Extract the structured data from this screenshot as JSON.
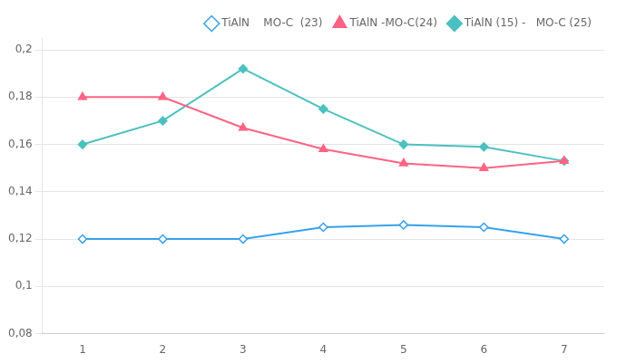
{
  "chart_data": {
    "type": "line",
    "x": [
      1,
      2,
      3,
      4,
      5,
      6,
      7
    ],
    "series": [
      {
        "name": "TiAlN    MO-C  (23)",
        "values": [
          0.12,
          0.12,
          0.12,
          0.125,
          0.126,
          0.125,
          0.12
        ],
        "marker": "diamond_open",
        "line_style": "solid"
      },
      {
        "name": "TiAlN -MO-C(24)",
        "values": [
          0.18,
          0.18,
          0.167,
          0.158,
          0.152,
          0.15,
          0.153
        ],
        "marker": "triangle",
        "line_style": "solid"
      },
      {
        "name": "TiAlN (15) -   MO-C (25)",
        "values": [
          0.16,
          0.17,
          0.192,
          0.175,
          0.16,
          0.159,
          0.153
        ],
        "marker": "diamond",
        "line_style": "solid"
      }
    ],
    "xlim": [
      0.5,
      7.5
    ],
    "xticks": [
      1,
      2,
      3,
      4,
      5,
      6,
      7
    ],
    "ylim": [
      0.08,
      0.205
    ],
    "yticks": [
      {
        "value": 0.08,
        "label": "0,08"
      },
      {
        "value": 0.1,
        "label": "0,1"
      },
      {
        "value": 0.12,
        "label": "0,12"
      },
      {
        "value": 0.14,
        "label": "0,14"
      },
      {
        "value": 0.16,
        "label": "0,16"
      },
      {
        "value": 0.18,
        "label": "0,18"
      },
      {
        "value": 0.2,
        "label": "0,2"
      }
    ],
    "grid": "y",
    "legend": "upper right"
  }
}
